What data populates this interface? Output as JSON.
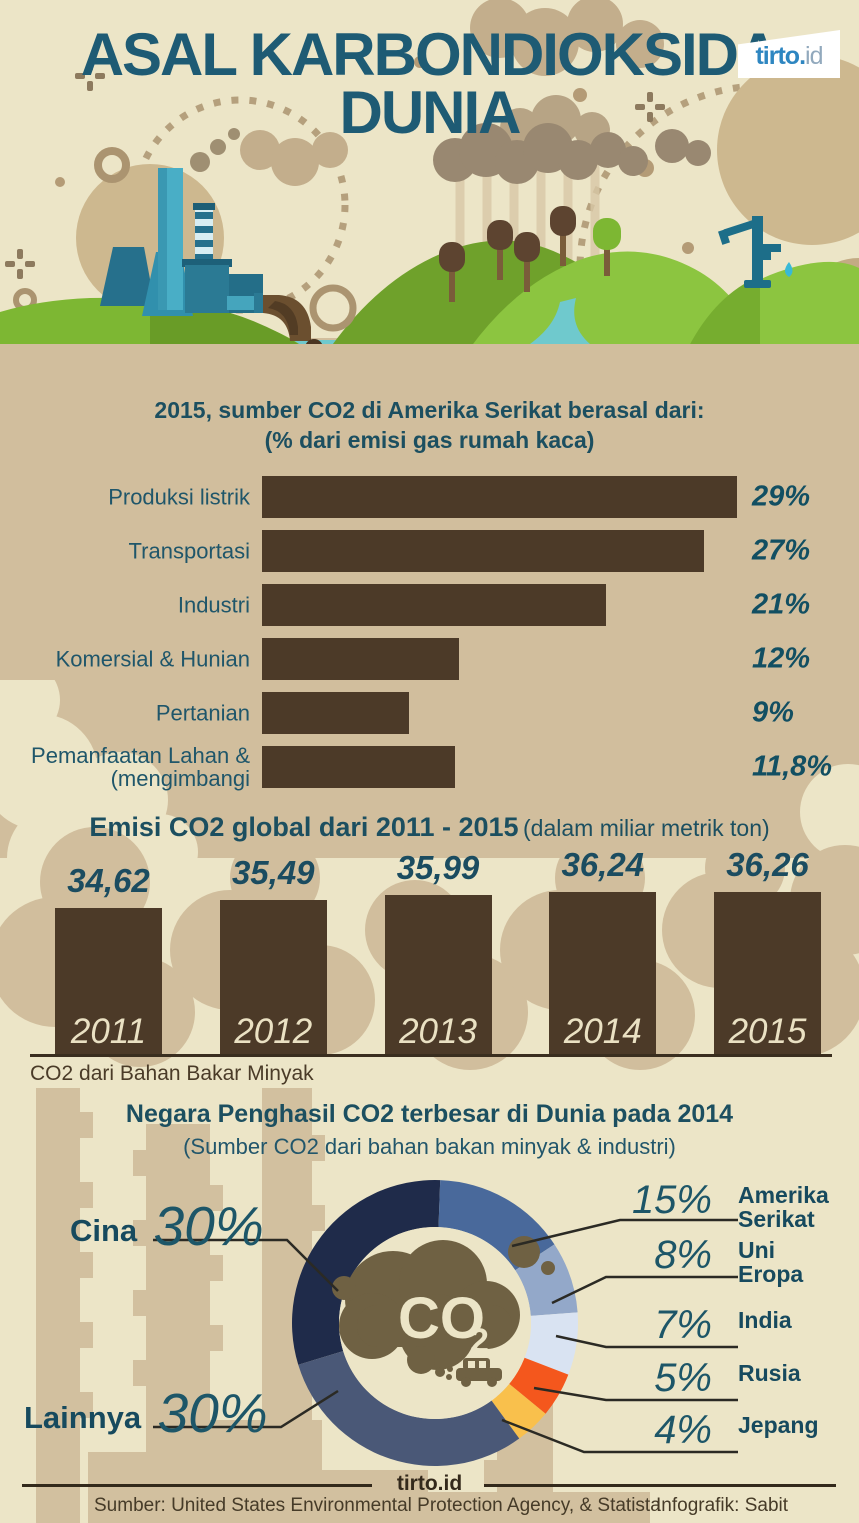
{
  "page": {
    "title_line1": "ASAL KARBONDIOKSIDA",
    "title_line2": "DUNIA"
  },
  "logo": {
    "primary": "tirto.",
    "secondary": "id"
  },
  "colors": {
    "background_cream": "#ece5c7",
    "background_tan": "#d1be9d",
    "bar_brown": "#4c3a28",
    "heading_teal": "#1e5b74"
  },
  "chart_data": [
    {
      "type": "bar",
      "orientation": "horizontal",
      "title": "2015, sumber CO2 di Amerika Serikat berasal dari:",
      "subtitle": "(% dari emisi gas rumah kaca)",
      "categories": [
        [
          "Produksi listrik"
        ],
        [
          "Transportasi"
        ],
        [
          "Industri"
        ],
        [
          "Komersial & Hunian"
        ],
        [
          "Pertanian"
        ],
        [
          "Pemanfaatan Lahan &",
          "(mengimbangi"
        ]
      ],
      "values": [
        29,
        27,
        21,
        12,
        9,
        11.8
      ],
      "value_labels": [
        "29%",
        "27%",
        "21%",
        "12%",
        "9%",
        "11,8%"
      ],
      "xlim": [
        0,
        29
      ],
      "bar_color": "#4c3a28",
      "grid": false,
      "legend": "none"
    },
    {
      "type": "bar",
      "orientation": "vertical",
      "title": "Emisi CO2 global dari 2011 - 2015",
      "title_note": "(dalam miliar metrik ton)",
      "categories": [
        "2011",
        "2012",
        "2013",
        "2014",
        "2015"
      ],
      "values": [
        34.62,
        35.49,
        35.99,
        36.24,
        36.26
      ],
      "value_labels": [
        "34,62",
        "35,49",
        "35,99",
        "36,24",
        "36,26"
      ],
      "caption": "CO2 dari Bahan Bakar Minyak",
      "bar_color": "#4c3a28",
      "grid": false,
      "legend": "none"
    },
    {
      "type": "pie",
      "subtype": "donut",
      "title": "Negara Penghasil CO2 terbesar di Dunia pada 2014",
      "subtitle": "(Sumber CO2 dari bahan bakan minyak & industri)",
      "center_label": "CO",
      "center_sub": "2",
      "segments": [
        {
          "name": "Cina",
          "name_lines": [
            "Cina"
          ],
          "pct": 30,
          "pct_label": "30%",
          "color": "#1f2b4a",
          "side": "left"
        },
        {
          "name": "Amerika Serikat",
          "name_lines": [
            "Amerika",
            "Serikat"
          ],
          "pct": 15,
          "pct_label": "15%",
          "color": "#49699b",
          "side": "right"
        },
        {
          "name": "Uni Eropa",
          "name_lines": [
            "Uni",
            "Eropa"
          ],
          "pct": 8,
          "pct_label": "8%",
          "color": "#93a8c9",
          "side": "right"
        },
        {
          "name": "India",
          "name_lines": [
            "India"
          ],
          "pct": 7,
          "pct_label": "7%",
          "color": "#d9e3f2",
          "side": "right"
        },
        {
          "name": "Rusia",
          "name_lines": [
            "Rusia"
          ],
          "pct": 5,
          "pct_label": "5%",
          "color": "#f4571d",
          "side": "right"
        },
        {
          "name": "Jepang",
          "name_lines": [
            "Jepang"
          ],
          "pct": 4,
          "pct_label": "4%",
          "color": "#f9c04c",
          "side": "right"
        },
        {
          "name": "Lainnya",
          "name_lines": [
            "Lainnya"
          ],
          "pct": 30,
          "pct_label": "30%",
          "color": "#4a5877",
          "side": "left"
        }
      ]
    }
  ],
  "footer": {
    "brand": "tirto.id",
    "source": "Sumber: United States Environmental Protection Agency, & Statista",
    "credit": "Infografik: Sabit"
  }
}
